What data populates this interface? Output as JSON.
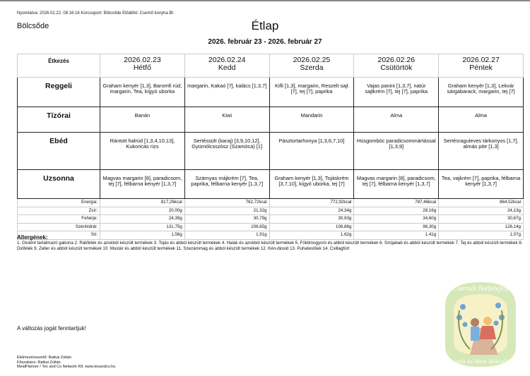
{
  "header": {
    "printed": "Nyomtatva: 2026.02.22. 08:16:16 Korcsoport: Bölcsőde Előállító: Csemő konyha Bt",
    "group": "Bölcsőde",
    "title": "Étlap",
    "date_range": "2026. február 23 - 2026. február 27"
  },
  "table": {
    "corner": "Étkezés",
    "days": [
      {
        "date": "2026.02.23",
        "day": "Hétfő"
      },
      {
        "date": "2026.02.24",
        "day": "Kedd"
      },
      {
        "date": "2026.02.25",
        "day": "Szerda"
      },
      {
        "date": "2026.02.26",
        "day": "Csütörtök"
      },
      {
        "date": "2026.02.27",
        "day": "Péntek"
      }
    ],
    "meals": [
      {
        "name": "Reggeli",
        "items": [
          "Graham kenyér [1,3], Baromfi rúd, margarin, Tea, kígyó uborka",
          "margarin, Kakaó [7], kalács [1,3,7]",
          "Kifli [1,3], margarin, Reszelt sajt [7], tej [7], paprika",
          "Vajas panini [1,3,7], natúr sajtkrém [7], tej [7], paprika",
          "Graham kenyér [1,3], Lekvár sárgabarack, margarin, tej [7]"
        ]
      },
      {
        "name": "Tízórai",
        "items": [
          "Banán",
          "Kiwi",
          "Mandarin",
          "Alma",
          "Alma"
        ]
      },
      {
        "name": "Ebéd",
        "items": [
          "Rántott halrúd [1,3,4,10,13], Kukoricás rizs",
          "Sertéssült (karaj) [3,9,10,12], Gyümölcsszósz (Szamóca) [1]",
          "Pásztortarhonya [1,3,6,7,10]",
          "Húsgombóc paradicsommártással [1,3,9]",
          "Sertésraguleves tárkonyos [1,7], almás pite [1,3]"
        ]
      },
      {
        "name": "Uzsonna",
        "items": [
          "Magvas margarin [8], paradicsom, tej [7], félbarna kenyér [1,3,7]",
          "Szárnyas májkrém [7], Tea, paprika, félbarna kenyér [1,3,7]",
          "Graham kenyér [1,3], Tojáskrém [3,7,10], kígyó uborka, tej [7]",
          "Magvas margarin [8], paradicsom, tej [7], félbarna kenyér [1,3,7]",
          "Tea, vajkrém [7], paprika, félbarna kenyér [1,3,7]"
        ]
      }
    ],
    "nutrition": [
      {
        "name": "Energia:",
        "values": [
          "817,26kcal",
          "762,72kcal",
          "772,92kcal",
          "787,46kcal",
          "864,52kcal"
        ]
      },
      {
        "name": "Zsír:",
        "values": [
          "20,00g",
          "21,32g",
          "24,34g",
          "28,16g",
          "24,13g"
        ]
      },
      {
        "name": "Fehérje:",
        "values": [
          "24,39g",
          "30,79g",
          "30,93g",
          "34,60g",
          "30,67g"
        ]
      },
      {
        "name": "Szénhidrát:",
        "values": [
          "131,75g",
          "108,65g",
          "106,86g",
          "96,30g",
          "128,14g"
        ]
      },
      {
        "name": "Só:",
        "values": [
          "1,56g",
          "1,91g",
          "1,62g",
          "1,41g",
          "1,07g"
        ]
      }
    ]
  },
  "allergens": {
    "title": "Allergének:",
    "text": "1. Glutént tartalmazó gabona 2. Rákfélék és azokból készült termékek 3. Tojás és abból készült termékek 4. Halak és azokból készült termékek 5. Földimogyoró és abból készült termékek 6. Szójabab és abból készült termékek 7. Tej és abból készült termékek 8. Diófélék 9. Zeller és abból készült termékek 10. Mustár és abból készült termékek 11. Szezámmag és abból készült termékek 12. Kén-dioxid 13. Puhatestűek 14. Csillagfürt"
  },
  "note": "A változás jogát fenntartjuk!",
  "footer": [
    "Élelmezésvezető: Ratkai Zoltán",
    "Főszakács: Ratkai Zoltán",
    "MealPlanner / Tex and Co Network Kft. www.texandco.hu"
  ],
  "logo": {
    "top_text": "Csemői Nefelejcs",
    "bottom_text": "Óvoda és Mini Bölcsőde"
  }
}
